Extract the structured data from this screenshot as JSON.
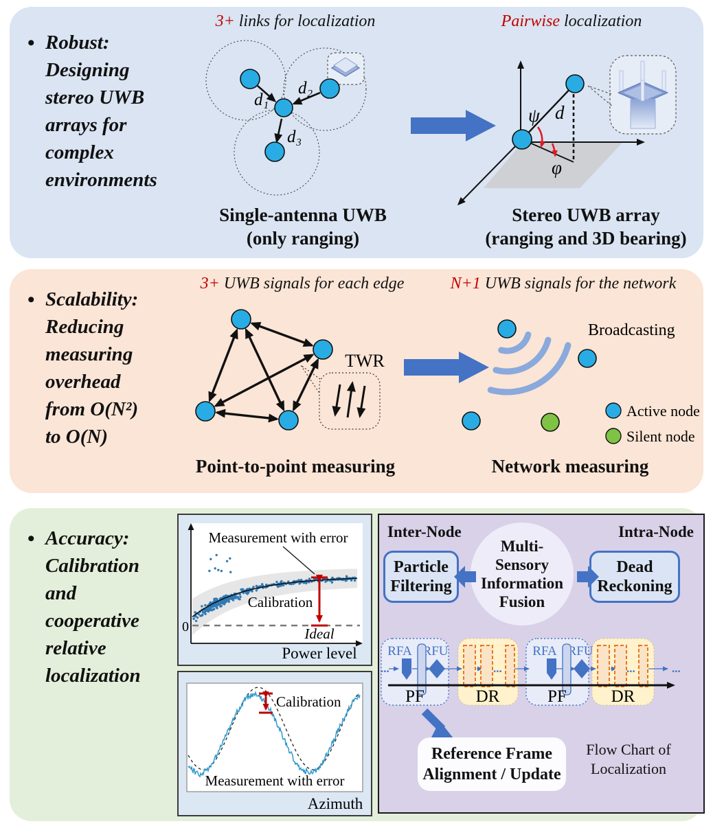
{
  "colors": {
    "panel_robust_bg": "#dae4f2",
    "panel_scalability_bg": "#fbe5d6",
    "panel_accuracy_bg": "#e3efda",
    "purple_panel_bg": "#d8d1e8",
    "accent_red": "#c00000",
    "node_blue": "#29ace3",
    "node_green": "#7ec344",
    "arrow_blue": "#4472c4",
    "wave_blue": "#8aa9dc"
  },
  "robust": {
    "bullet": "•",
    "title": "Robust:\nDesigning\nstereo UWB\narrays for\ncomplex\nenvironments",
    "header_left": {
      "accent": "3+",
      "rest": " links for localization"
    },
    "header_right": {
      "accent": "Pairwise",
      "rest": " localization"
    },
    "caption_left": "Single-antenna UWB\n(only ranging)",
    "caption_right": "Stereo UWB array\n(ranging and 3D bearing)",
    "labels": {
      "d1": "d₁",
      "d2": "d₂",
      "d3": "d₃",
      "psi": "ψ",
      "d": "d",
      "phi": "φ"
    }
  },
  "scalability": {
    "bullet": "•",
    "title": "Scalability:\nReducing\nmeasuring\noverhead\nfrom O(N²)\nto O(N)",
    "header_left": {
      "accent": "3+",
      "rest": " UWB signals for each edge"
    },
    "header_right": {
      "accent": "N+1",
      "rest": " UWB signals for the network"
    },
    "twr": "TWR",
    "broadcasting": "Broadcasting",
    "legend": [
      {
        "label": "Active node",
        "color": "#29ace3"
      },
      {
        "label": "Silent node",
        "color": "#7ec344"
      }
    ],
    "caption_left": "Point-to-point measuring",
    "caption_right": "Network measuring"
  },
  "accuracy": {
    "bullet": "•",
    "title": "Accuracy:\nCalibration\nand\ncooperative\nrelative\nlocalization",
    "chart_power": {
      "measurement_label": "Measurement with error",
      "calibration_label": "Calibration",
      "ideal_label": "Ideal",
      "zero": "0",
      "xlabel": "Power level"
    },
    "chart_azimuth": {
      "measurement_label": "Measurement with error",
      "calibration_label": "Calibration",
      "xlabel": "Azimuth"
    },
    "fusion": {
      "inter_node": "Inter-Node",
      "intra_node": "Intra-Node",
      "center": "Multi-\nSensory\nInformation\nFusion",
      "left_box": "Particle\nFiltering",
      "right_box": "Dead\nReckoning",
      "timeline": {
        "rfa": "RFA",
        "rfu": "RFU",
        "pf": "PF",
        "dr": "DR",
        "ellipsis": "..."
      },
      "reference_box": "Reference Frame\nAlignment / Update",
      "flow_label": "Flow Chart of\nLocalization"
    }
  }
}
